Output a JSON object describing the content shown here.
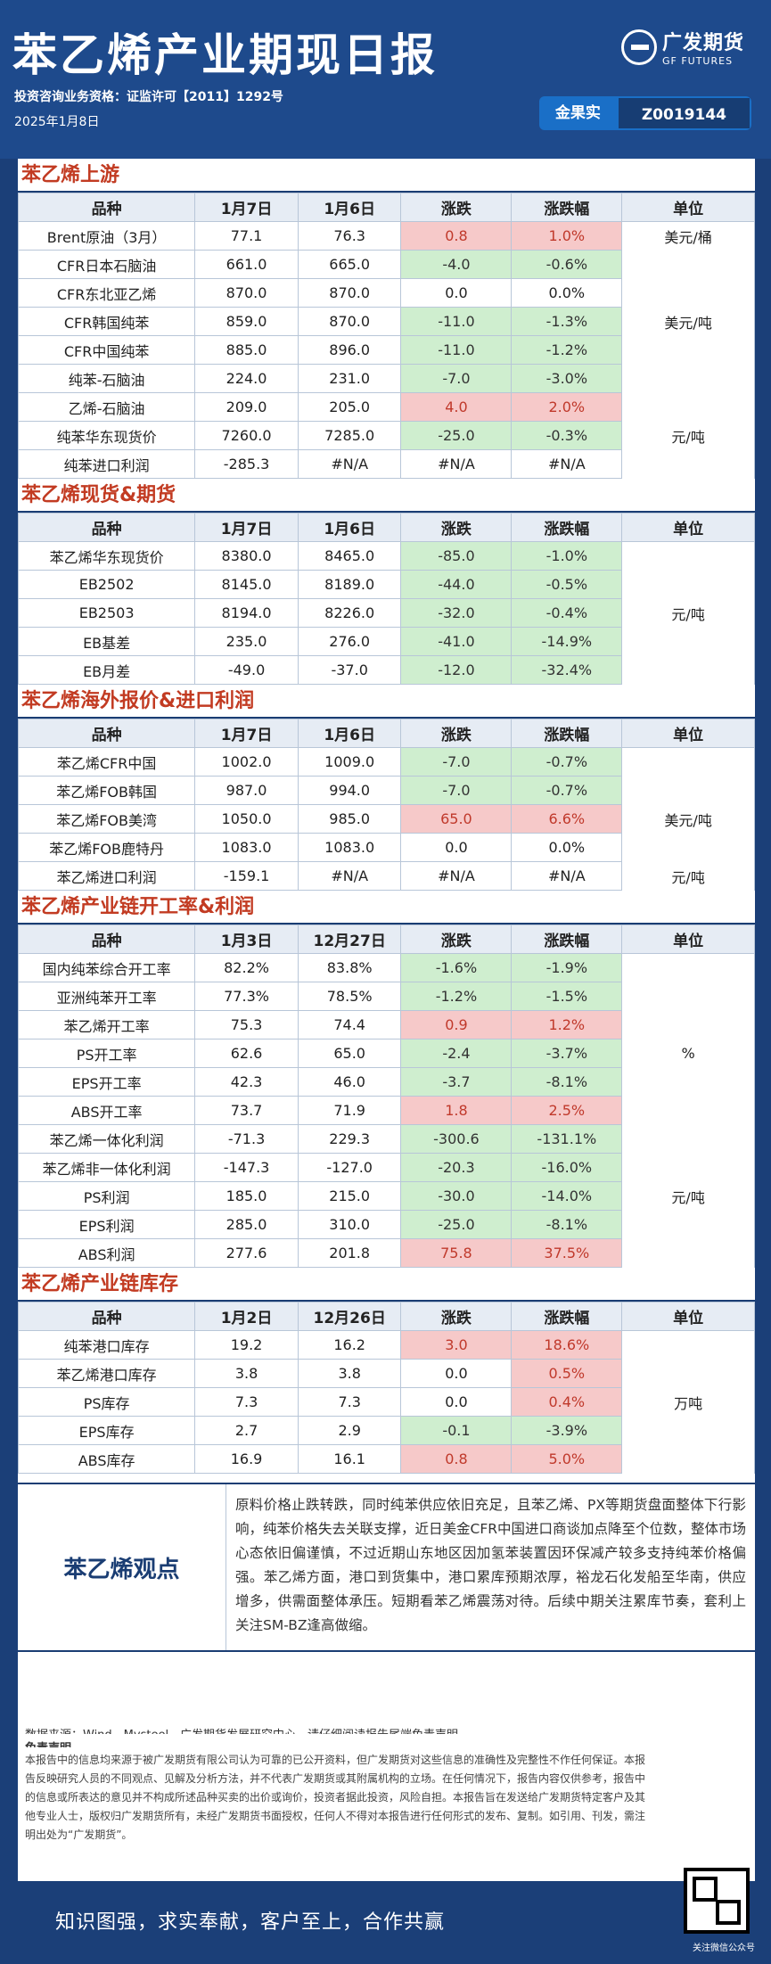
{
  "header": {
    "title": "苯乙烯产业期现日报",
    "license": "投资咨询业务资格：证监许可【2011】1292号",
    "date": "2025年1月8日",
    "logo_cn": "广发期货",
    "logo_en": "GF FUTURES",
    "analyst_name": "金果实",
    "analyst_id": "Z0019144"
  },
  "sections": [
    {
      "title": "苯乙烯上游",
      "headers": [
        "品种",
        "1月7日",
        "1月6日",
        "涨跌",
        "涨跌幅",
        "单位"
      ],
      "rows": [
        [
          "Brent原油（3月）",
          "77.1",
          "76.3",
          "0.8",
          "1.0%",
          "美元/桶"
        ],
        [
          "CFR日本石脑油",
          "661.0",
          "665.0",
          "-4.0",
          "-0.6%",
          ""
        ],
        [
          "CFR东北亚乙烯",
          "870.0",
          "870.0",
          "0.0",
          "0.0%",
          ""
        ],
        [
          "CFR韩国纯苯",
          "859.0",
          "870.0",
          "-11.0",
          "-1.3%",
          "美元/吨"
        ],
        [
          "CFR中国纯苯",
          "885.0",
          "896.0",
          "-11.0",
          "-1.2%",
          ""
        ],
        [
          "纯苯-石脑油",
          "224.0",
          "231.0",
          "-7.0",
          "-3.0%",
          ""
        ],
        [
          "乙烯-石脑油",
          "209.0",
          "205.0",
          "4.0",
          "2.0%",
          ""
        ],
        [
          "纯苯华东现货价",
          "7260.0",
          "7285.0",
          "-25.0",
          "-0.3%",
          "元/吨"
        ],
        [
          "纯苯进口利润",
          "-285.3",
          "#N/A",
          "#N/A",
          "#N/A",
          ""
        ]
      ]
    },
    {
      "title": "苯乙烯现货&期货",
      "headers": [
        "品种",
        "1月7日",
        "1月6日",
        "涨跌",
        "涨跌幅",
        "单位"
      ],
      "rows": [
        [
          "苯乙烯华东现货价",
          "8380.0",
          "8465.0",
          "-85.0",
          "-1.0%",
          ""
        ],
        [
          "EB2502",
          "8145.0",
          "8189.0",
          "-44.0",
          "-0.5%",
          ""
        ],
        [
          "EB2503",
          "8194.0",
          "8226.0",
          "-32.0",
          "-0.4%",
          "元/吨"
        ],
        [
          "EB基差",
          "235.0",
          "276.0",
          "-41.0",
          "-14.9%",
          ""
        ],
        [
          "EB月差",
          "-49.0",
          "-37.0",
          "-12.0",
          "-32.4%",
          ""
        ]
      ]
    },
    {
      "title": "苯乙烯海外报价&进口利润",
      "headers": [
        "品种",
        "1月7日",
        "1月6日",
        "涨跌",
        "涨跌幅",
        "单位"
      ],
      "rows": [
        [
          "苯乙烯CFR中国",
          "1002.0",
          "1009.0",
          "-7.0",
          "-0.7%",
          ""
        ],
        [
          "苯乙烯FOB韩国",
          "987.0",
          "994.0",
          "-7.0",
          "-0.7%",
          ""
        ],
        [
          "苯乙烯FOB美湾",
          "1050.0",
          "985.0",
          "65.0",
          "6.6%",
          "美元/吨"
        ],
        [
          "苯乙烯FOB鹿特丹",
          "1083.0",
          "1083.0",
          "0.0",
          "0.0%",
          ""
        ],
        [
          "苯乙烯进口利润",
          "-159.1",
          "#N/A",
          "#N/A",
          "#N/A",
          "元/吨"
        ]
      ]
    },
    {
      "title": "苯乙烯产业链开工率&利润",
      "headers": [
        "品种",
        "1月3日",
        "12月27日",
        "涨跌",
        "涨跌幅",
        "单位"
      ],
      "rows": [
        [
          "国内纯苯综合开工率",
          "82.2%",
          "83.8%",
          "-1.6%",
          "-1.9%",
          ""
        ],
        [
          "亚洲纯苯开工率",
          "77.3%",
          "78.5%",
          "-1.2%",
          "-1.5%",
          ""
        ],
        [
          "苯乙烯开工率",
          "75.3",
          "74.4",
          "0.9",
          "1.2%",
          ""
        ],
        [
          "PS开工率",
          "62.6",
          "65.0",
          "-2.4",
          "-3.7%",
          "%"
        ],
        [
          "EPS开工率",
          "42.3",
          "46.0",
          "-3.7",
          "-8.1%",
          ""
        ],
        [
          "ABS开工率",
          "73.7",
          "71.9",
          "1.8",
          "2.5%",
          ""
        ],
        [
          "苯乙烯一体化利润",
          "-71.3",
          "229.3",
          "-300.6",
          "-131.1%",
          ""
        ],
        [
          "苯乙烯非一体化利润",
          "-147.3",
          "-127.0",
          "-20.3",
          "-16.0%",
          ""
        ],
        [
          "PS利润",
          "185.0",
          "215.0",
          "-30.0",
          "-14.0%",
          "元/吨"
        ],
        [
          "EPS利润",
          "285.0",
          "310.0",
          "-25.0",
          "-8.1%",
          ""
        ],
        [
          "ABS利润",
          "277.6",
          "201.8",
          "75.8",
          "37.5%",
          ""
        ]
      ]
    },
    {
      "title": "苯乙烯产业链库存",
      "headers": [
        "品种",
        "1月2日",
        "12月26日",
        "涨跌",
        "涨跌幅",
        "单位"
      ],
      "rows": [
        [
          "纯苯港口库存",
          "19.2",
          "16.2",
          "3.0",
          "18.6%",
          ""
        ],
        [
          "苯乙烯港口库存",
          "3.8",
          "3.8",
          "0.0",
          "0.5%",
          ""
        ],
        [
          "PS库存",
          "7.3",
          "7.3",
          "0.0",
          "0.4%",
          "万吨"
        ],
        [
          "EPS库存",
          "2.7",
          "2.9",
          "-0.1",
          "-3.9%",
          ""
        ],
        [
          "ABS库存",
          "16.9",
          "16.1",
          "0.8",
          "5.0%",
          ""
        ]
      ]
    }
  ],
  "view": {
    "label": "苯乙烯观点",
    "text": "原料价格止跌转跌，同时纯苯供应依旧充足，且苯乙烯、PX等期货盘面整体下行影响，纯苯价格失去关联支撑，近日美金CFR中国进口商谈加点降至个位数，整体市场心态依旧偏谨慎，不过近期山东地区因加氢苯装置因环保减产较多支持纯苯价格偏强。苯乙烯方面，港口到货集中，港口累库预期浓厚，裕龙石化发船至华南，供应增多，供需面整体承压。短期看苯乙烯震荡对待。后续中期关注累库节奏，套利上关注SM-BZ逢高做缩。"
  },
  "footer": {
    "source": "数据来源：Wind、Mysteel、广发期货发展研究中心。请仔细阅读报告尾端免责声明。",
    "disclaimer_title": "免责声明",
    "disclaimer": "本报告中的信息均来源于被广发期货有限公司认为可靠的已公开资料，但广发期货对这些信息的准确性及完整性不作任何保证。本报告反映研究人员的不同观点、见解及分析方法，并不代表广发期货或其附属机构的立场。在任何情况下，报告内容仅供参考，报告中的信息或所表达的意见并不构成所述品种买卖的出价或询价，投资者据此投资，风险自担。本报告旨在发送给广发期货特定客户及其他专业人士，版权归广发期货所有，未经广发期货书面授权，任何人不得对本报告进行任何形式的发布、复制。如引用、刊发，需注明出处为“广发期货”。",
    "qr_caption": "关注微信公众号",
    "slogan": "知识图强，求实奉献，客户至上，合作共赢"
  }
}
